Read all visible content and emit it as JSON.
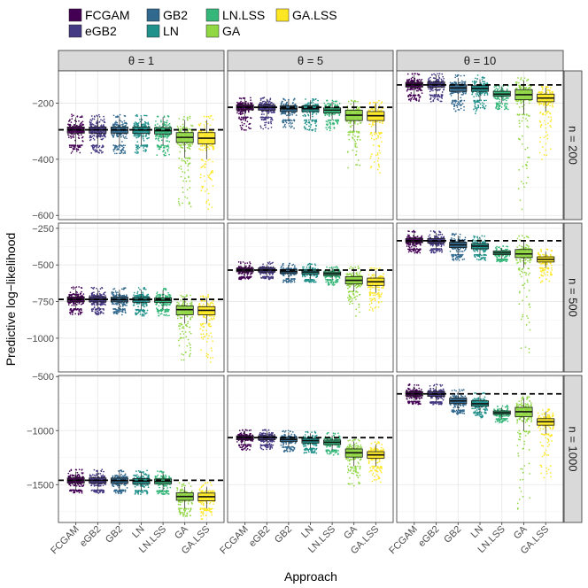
{
  "chart_data": {
    "type": "boxplot",
    "xlabel": "Approach",
    "ylabel": "Predictive log−likelihood",
    "approaches": [
      "FCGAM",
      "eGB2",
      "GB2",
      "LN",
      "LN.LSS",
      "GA",
      "GA.LSS"
    ],
    "legend": [
      {
        "name": "FCGAM",
        "color": "#440154"
      },
      {
        "name": "eGB2",
        "color": "#443983"
      },
      {
        "name": "GB2",
        "color": "#31688E"
      },
      {
        "name": "LN",
        "color": "#21918C"
      },
      {
        "name": "LN.LSS",
        "color": "#35B779"
      },
      {
        "name": "GA",
        "color": "#90D743"
      },
      {
        "name": "GA.LSS",
        "color": "#FDE725"
      }
    ],
    "col_strips": [
      "θ = 1",
      "θ = 5",
      "θ = 10"
    ],
    "row_strips": [
      "n = 200",
      "n = 500",
      "n = 1000"
    ],
    "rows": [
      {
        "ylim": [
          -615,
          -85
        ],
        "yticks": [
          -200,
          -400,
          -600
        ],
        "ytick_labels": [
          "−200",
          "−400",
          "−600"
        ],
        "panels": [
          {
            "ref": -295,
            "boxes": [
              {
                "q1": -307,
                "med": -295,
                "q3": -285,
                "lo": -350,
                "hi": -250,
                "omin": -380,
                "omax": -240
              },
              {
                "q1": -307,
                "med": -295,
                "q3": -285,
                "lo": -350,
                "hi": -250,
                "omin": -380,
                "omax": -240
              },
              {
                "q1": -307,
                "med": -296,
                "q3": -285,
                "lo": -350,
                "hi": -250,
                "omin": -380,
                "omax": -240
              },
              {
                "q1": -308,
                "med": -296,
                "q3": -285,
                "lo": -350,
                "hi": -250,
                "omin": -380,
                "omax": -240
              },
              {
                "q1": -310,
                "med": -298,
                "q3": -287,
                "lo": -350,
                "hi": -250,
                "omin": -390,
                "omax": -245
              },
              {
                "q1": -340,
                "med": -322,
                "q3": -305,
                "lo": -395,
                "hi": -260,
                "omin": -580,
                "omax": -245
              },
              {
                "q1": -345,
                "med": -325,
                "q3": -305,
                "lo": -400,
                "hi": -260,
                "omin": -590,
                "omax": -245
              }
            ]
          },
          {
            "ref": -215,
            "boxes": [
              {
                "q1": -224,
                "med": -214,
                "q3": -206,
                "lo": -250,
                "hi": -185,
                "omin": -300,
                "omax": -180
              },
              {
                "q1": -225,
                "med": -215,
                "q3": -207,
                "lo": -250,
                "hi": -185,
                "omin": -295,
                "omax": -180
              },
              {
                "q1": -230,
                "med": -220,
                "q3": -210,
                "lo": -260,
                "hi": -190,
                "omin": -300,
                "omax": -183
              },
              {
                "q1": -230,
                "med": -220,
                "q3": -210,
                "lo": -260,
                "hi": -190,
                "omin": -300,
                "omax": -185
              },
              {
                "q1": -235,
                "med": -225,
                "q3": -217,
                "lo": -260,
                "hi": -195,
                "omin": -300,
                "omax": -190
              },
              {
                "q1": -262,
                "med": -243,
                "q3": -225,
                "lo": -300,
                "hi": -195,
                "omin": -450,
                "omax": -190
              },
              {
                "q1": -262,
                "med": -245,
                "q3": -230,
                "lo": -305,
                "hi": -200,
                "omin": -450,
                "omax": -190
              }
            ]
          },
          {
            "ref": -135,
            "boxes": [
              {
                "q1": -143,
                "med": -134,
                "q3": -126,
                "lo": -170,
                "hi": -100,
                "omin": -195,
                "omax": -95
              },
              {
                "q1": -143,
                "med": -134,
                "q3": -125,
                "lo": -170,
                "hi": -100,
                "omin": -195,
                "omax": -95
              },
              {
                "q1": -158,
                "med": -146,
                "q3": -135,
                "lo": -190,
                "hi": -110,
                "omin": -230,
                "omax": -100
              },
              {
                "q1": -158,
                "med": -148,
                "q3": -138,
                "lo": -190,
                "hi": -115,
                "omin": -240,
                "omax": -100
              },
              {
                "q1": -175,
                "med": -168,
                "q3": -158,
                "lo": -200,
                "hi": -140,
                "omin": -225,
                "omax": -135
              },
              {
                "q1": -188,
                "med": -170,
                "q3": -152,
                "lo": -240,
                "hi": -120,
                "omin": -600,
                "omax": -110
              },
              {
                "q1": -195,
                "med": -182,
                "q3": -168,
                "lo": -230,
                "hi": -145,
                "omin": -430,
                "omax": -140
              }
            ]
          }
        ]
      },
      {
        "ylim": [
          -1230,
          -215
        ],
        "yticks": [
          -250,
          -500,
          -750,
          -1000
        ],
        "ytick_labels": [
          "−250",
          "−500",
          "−750",
          "−1000"
        ],
        "panels": [
          {
            "ref": -735,
            "boxes": [
              {
                "q1": -752,
                "med": -735,
                "q3": -718,
                "lo": -800,
                "hi": -665,
                "omin": -840,
                "omax": -650
              },
              {
                "q1": -752,
                "med": -735,
                "q3": -718,
                "lo": -800,
                "hi": -665,
                "omin": -840,
                "omax": -650
              },
              {
                "q1": -752,
                "med": -737,
                "q3": -720,
                "lo": -800,
                "hi": -668,
                "omin": -845,
                "omax": -655
              },
              {
                "q1": -755,
                "med": -738,
                "q3": -722,
                "lo": -805,
                "hi": -670,
                "omin": -850,
                "omax": -655
              },
              {
                "q1": -755,
                "med": -740,
                "q3": -725,
                "lo": -805,
                "hi": -675,
                "omin": -850,
                "omax": -660
              },
              {
                "q1": -840,
                "med": -805,
                "q3": -780,
                "lo": -900,
                "hi": -720,
                "omin": -1150,
                "omax": -700
              },
              {
                "q1": -840,
                "med": -810,
                "q3": -785,
                "lo": -900,
                "hi": -725,
                "omin": -1190,
                "omax": -700
              }
            ]
          },
          {
            "ref": -535,
            "boxes": [
              {
                "q1": -547,
                "med": -535,
                "q3": -522,
                "lo": -580,
                "hi": -495,
                "omin": -600,
                "omax": -480
              },
              {
                "q1": -548,
                "med": -535,
                "q3": -522,
                "lo": -580,
                "hi": -495,
                "omin": -600,
                "omax": -480
              },
              {
                "q1": -558,
                "med": -545,
                "q3": -532,
                "lo": -595,
                "hi": -505,
                "omin": -620,
                "omax": -490
              },
              {
                "q1": -562,
                "med": -548,
                "q3": -535,
                "lo": -600,
                "hi": -505,
                "omin": -620,
                "omax": -490
              },
              {
                "q1": -572,
                "med": -560,
                "q3": -548,
                "lo": -600,
                "hi": -520,
                "omin": -640,
                "omax": -510
              },
              {
                "q1": -630,
                "med": -605,
                "q3": -580,
                "lo": -680,
                "hi": -525,
                "omin": -850,
                "omax": -500
              },
              {
                "q1": -640,
                "med": -615,
                "q3": -590,
                "lo": -690,
                "hi": -540,
                "omin": -820,
                "omax": -520
              }
            ]
          },
          {
            "ref": -335,
            "boxes": [
              {
                "q1": -348,
                "med": -335,
                "q3": -320,
                "lo": -390,
                "hi": -280,
                "omin": -420,
                "omax": -265
              },
              {
                "q1": -350,
                "med": -337,
                "q3": -320,
                "lo": -390,
                "hi": -280,
                "omin": -420,
                "omax": -265
              },
              {
                "q1": -382,
                "med": -363,
                "q3": -345,
                "lo": -430,
                "hi": -300,
                "omin": -470,
                "omax": -285
              },
              {
                "q1": -390,
                "med": -372,
                "q3": -355,
                "lo": -430,
                "hi": -315,
                "omin": -470,
                "omax": -300
              },
              {
                "q1": -430,
                "med": -418,
                "q3": -405,
                "lo": -460,
                "hi": -385,
                "omin": -480,
                "omax": -370
              },
              {
                "q1": -450,
                "med": -425,
                "q3": -395,
                "lo": -520,
                "hi": -330,
                "omin": -1100,
                "omax": -300
              },
              {
                "q1": -480,
                "med": -462,
                "q3": -445,
                "lo": -520,
                "hi": -410,
                "omin": -620,
                "omax": -390
              }
            ]
          }
        ]
      },
      {
        "ylim": [
          -1850,
          -490
        ],
        "yticks": [
          -500,
          -1000,
          -1500
        ],
        "ytick_labels": [
          "−500",
          "−1000",
          "−1500"
        ],
        "panels": [
          {
            "ref": -1460,
            "boxes": [
              {
                "q1": -1485,
                "med": -1460,
                "q3": -1438,
                "lo": -1550,
                "hi": -1380,
                "omin": -1580,
                "omax": -1360
              },
              {
                "q1": -1485,
                "med": -1460,
                "q3": -1438,
                "lo": -1550,
                "hi": -1380,
                "omin": -1580,
                "omax": -1360
              },
              {
                "q1": -1488,
                "med": -1463,
                "q3": -1440,
                "lo": -1550,
                "hi": -1380,
                "omin": -1585,
                "omax": -1360
              },
              {
                "q1": -1492,
                "med": -1468,
                "q3": -1445,
                "lo": -1555,
                "hi": -1385,
                "omin": -1590,
                "omax": -1365
              },
              {
                "q1": -1492,
                "med": -1470,
                "q3": -1448,
                "lo": -1555,
                "hi": -1390,
                "omin": -1590,
                "omax": -1370
              },
              {
                "q1": -1645,
                "med": -1610,
                "q3": -1575,
                "lo": -1720,
                "hi": -1520,
                "omin": -1800,
                "omax": -1480
              },
              {
                "q1": -1650,
                "med": -1612,
                "q3": -1578,
                "lo": -1720,
                "hi": -1520,
                "omin": -1830,
                "omax": -1480
              }
            ]
          },
          {
            "ref": -1065,
            "boxes": [
              {
                "q1": -1085,
                "med": -1065,
                "q3": -1048,
                "lo": -1130,
                "hi": -1000,
                "omin": -1180,
                "omax": -990
              },
              {
                "q1": -1085,
                "med": -1065,
                "q3": -1048,
                "lo": -1130,
                "hi": -1000,
                "omin": -1180,
                "omax": -990
              },
              {
                "q1": -1102,
                "med": -1082,
                "q3": -1062,
                "lo": -1150,
                "hi": -1015,
                "omin": -1200,
                "omax": -1000
              },
              {
                "q1": -1115,
                "med": -1093,
                "q3": -1072,
                "lo": -1165,
                "hi": -1025,
                "omin": -1210,
                "omax": -1010
              },
              {
                "q1": -1130,
                "med": -1108,
                "q3": -1088,
                "lo": -1180,
                "hi": -1045,
                "omin": -1230,
                "omax": -1020
              },
              {
                "q1": -1245,
                "med": -1205,
                "q3": -1170,
                "lo": -1330,
                "hi": -1100,
                "omin": -1520,
                "omax": -1080
              },
              {
                "q1": -1255,
                "med": -1225,
                "q3": -1195,
                "lo": -1330,
                "hi": -1130,
                "omin": -1480,
                "omax": -1100
              }
            ]
          },
          {
            "ref": -660,
            "boxes": [
              {
                "q1": -680,
                "med": -660,
                "q3": -640,
                "lo": -730,
                "hi": -590,
                "omin": -760,
                "omax": -570
              },
              {
                "q1": -683,
                "med": -662,
                "q3": -640,
                "lo": -735,
                "hi": -590,
                "omin": -760,
                "omax": -570
              },
              {
                "q1": -750,
                "med": -725,
                "q3": -700,
                "lo": -810,
                "hi": -640,
                "omin": -850,
                "omax": -620
              },
              {
                "q1": -775,
                "med": -752,
                "q3": -725,
                "lo": -830,
                "hi": -670,
                "omin": -880,
                "omax": -650
              },
              {
                "q1": -850,
                "med": -835,
                "q3": -818,
                "lo": -890,
                "hi": -785,
                "omin": -930,
                "omax": -765
              },
              {
                "q1": -870,
                "med": -825,
                "q3": -785,
                "lo": -1000,
                "hi": -700,
                "omin": -1790,
                "omax": -680
              },
              {
                "q1": -950,
                "med": -918,
                "q3": -890,
                "lo": -1030,
                "hi": -825,
                "omin": -1450,
                "omax": -800
              }
            ]
          }
        ]
      }
    ]
  }
}
